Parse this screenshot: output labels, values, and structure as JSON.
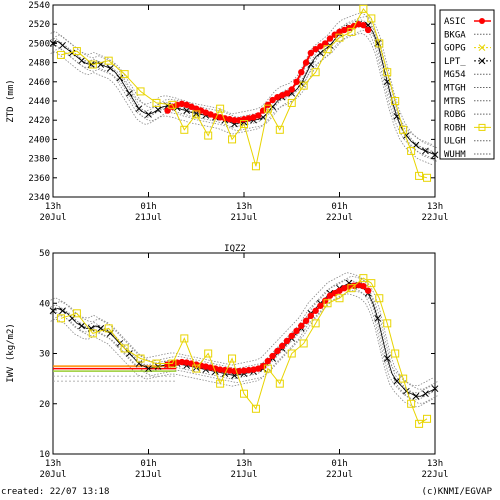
{
  "chart_data": [
    {
      "type": "line",
      "ylabel": "ZTD (mm)",
      "ylim": [
        2340,
        2540
      ],
      "yticks": [
        "2340",
        "2360",
        "2380",
        "2400",
        "2420",
        "2440",
        "2460",
        "2480",
        "2500",
        "2520",
        "2540"
      ],
      "xticks": [
        {
          "hour": "13h",
          "date": "20Jul"
        },
        {
          "hour": "01h",
          "date": "21Jul"
        },
        {
          "hour": "13h",
          "date": "21Jul"
        },
        {
          "hour": "01h",
          "date": "22Jul"
        },
        {
          "hour": "13h",
          "date": "22Jul"
        }
      ],
      "grid": false,
      "legend_position": "right",
      "legend": [
        "ASIC",
        "BKGA",
        "GOPG",
        "LPT_",
        "MG54",
        "MTGH",
        "MTRS",
        "ROBG",
        "ROBH",
        "ULGH",
        "WUHM"
      ],
      "series": [
        {
          "name": "LPT_",
          "marker": "x",
          "color": "#000000",
          "x": [
            0,
            0.6,
            1.2,
            1.8,
            2.4,
            3,
            3.6,
            4.2,
            4.8,
            5.4,
            6,
            6.6,
            7.2,
            7.8,
            8.4,
            9,
            9.6,
            10.2,
            10.8,
            11.4,
            12,
            12.6,
            13.2,
            13.8,
            14.4,
            15,
            15.6,
            16.2,
            16.8,
            17.4,
            18,
            18.6,
            19.2,
            19.8,
            20.4,
            21,
            21.6,
            22.2,
            22.8,
            23.4,
            24,
            24.6,
            25.2,
            25.8,
            26.4,
            27,
            27.6,
            28.2,
            28.8,
            29.4,
            30,
            30.6,
            31.2,
            31.8,
            32.4,
            33,
            33.6,
            34.2,
            34.8,
            35.4,
            36,
            36.6,
            37.2,
            37.8,
            38.4,
            39,
            39.6,
            40.2,
            40.8,
            41.4,
            42,
            42.6,
            43.2,
            43.8,
            44.4,
            45,
            45.6,
            46.2,
            46.8,
            47.4,
            48
          ],
          "y": [
            2500,
            2502,
            2498,
            2494,
            2490,
            2486,
            2482,
            2479,
            2478,
            2480,
            2478,
            2476,
            2474,
            2470,
            2464,
            2456,
            2448,
            2440,
            2432,
            2428,
            2426,
            2428,
            2431,
            2434,
            2435,
            2434,
            2433,
            2431,
            2430,
            2428,
            2427,
            2426,
            2425,
            2424,
            2423,
            2422,
            2420,
            2418,
            2416,
            2417,
            2418,
            2419,
            2420,
            2421,
            2423,
            2428,
            2434,
            2440,
            2444,
            2446,
            2448,
            2452,
            2458,
            2468,
            2478,
            2486,
            2490,
            2494,
            2498,
            2504,
            2510,
            2514,
            2516,
            2518,
            2520,
            2521,
            2519,
            2512,
            2500,
            2480,
            2460,
            2440,
            2424,
            2412,
            2404,
            2398,
            2394,
            2390,
            2388,
            2386,
            2384
          ]
        },
        {
          "name": "ASIC",
          "marker": "dot",
          "color": "#ff0000",
          "x": [
            14.4,
            15,
            15.6,
            16.2,
            16.8,
            17.4,
            18,
            18.6,
            19.2,
            19.8,
            20.4,
            21,
            21.6,
            22.2,
            22.8,
            23.4,
            24,
            24.6,
            25.2,
            25.8,
            26.4,
            27,
            27.6,
            28.2,
            28.8,
            29.4,
            30,
            30.6,
            31.2,
            31.8,
            32.4,
            33,
            33.6,
            34.2,
            34.8,
            35.4,
            36,
            36.6,
            37.2,
            37.8,
            38.4,
            39,
            39.6
          ],
          "y": [
            2430,
            2434,
            2436,
            2437,
            2436,
            2434,
            2432,
            2430,
            2428,
            2426,
            2424,
            2423,
            2422,
            2421,
            2420,
            2420,
            2421,
            2422,
            2423,
            2425,
            2430,
            2436,
            2441,
            2444,
            2446,
            2448,
            2452,
            2460,
            2470,
            2480,
            2490,
            2494,
            2497,
            2500,
            2505,
            2509,
            2512,
            2514,
            2516,
            2518,
            2520,
            2519,
            2514
          ]
        },
        {
          "name": "GOPG",
          "marker": "square",
          "color": "#ffd700",
          "x": [
            1,
            3,
            5,
            7,
            9,
            11,
            13,
            15,
            16.5,
            18,
            19.5,
            21,
            22.5,
            24,
            25.5,
            27,
            28.5,
            30,
            31.5,
            33,
            34.5,
            36,
            37.5,
            39,
            40,
            41,
            42,
            43,
            44,
            45,
            46,
            47
          ],
          "y": [
            2488,
            2492,
            2478,
            2482,
            2468,
            2450,
            2438,
            2436,
            2410,
            2426,
            2404,
            2432,
            2400,
            2416,
            2372,
            2432,
            2410,
            2438,
            2456,
            2470,
            2494,
            2506,
            2512,
            2536,
            2526,
            2500,
            2470,
            2440,
            2410,
            2388,
            2362,
            2360
          ]
        }
      ],
      "other_series_style": "dotted grey"
    },
    {
      "type": "line",
      "title": "IQZ2",
      "ylabel": "IWV (kg/m2)",
      "ylim": [
        10,
        50
      ],
      "yticks": [
        "10",
        "20",
        "30",
        "40",
        "50"
      ],
      "xticks": [
        {
          "hour": "13h",
          "date": "20Jul"
        },
        {
          "hour": "01h",
          "date": "21Jul"
        },
        {
          "hour": "13h",
          "date": "21Jul"
        },
        {
          "hour": "01h",
          "date": "22Jul"
        },
        {
          "hour": "13h",
          "date": "22Jul"
        }
      ],
      "grid": false,
      "series": [
        {
          "name": "LPT_",
          "marker": "x",
          "color": "#000000",
          "x": [
            0,
            0.6,
            1.2,
            1.8,
            2.4,
            3,
            3.6,
            4.2,
            4.8,
            5.4,
            6,
            6.6,
            7.2,
            7.8,
            8.4,
            9,
            9.6,
            10.2,
            10.8,
            11.4,
            12,
            12.6,
            13.2,
            13.8,
            14.4,
            15,
            15.6,
            16.2,
            16.8,
            17.4,
            18,
            18.6,
            19.2,
            19.8,
            20.4,
            21,
            21.6,
            22.2,
            22.8,
            23.4,
            24,
            24.6,
            25.2,
            25.8,
            26.4,
            27,
            27.6,
            28.2,
            28.8,
            29.4,
            30,
            30.6,
            31.2,
            31.8,
            32.4,
            33,
            33.6,
            34.2,
            34.8,
            35.4,
            36,
            36.6,
            37.2,
            37.8,
            38.4,
            39,
            39.6,
            40.2,
            40.8,
            41.4,
            42,
            42.6,
            43.2,
            43.8,
            44.4,
            45,
            45.6,
            46.2,
            46.8,
            47.4,
            48
          ],
          "y": [
            38.5,
            39,
            38.5,
            38,
            37,
            36,
            35.5,
            35,
            35,
            35.5,
            35,
            34.5,
            34,
            33,
            32,
            31,
            30,
            29,
            28,
            27.5,
            27,
            27.2,
            27.4,
            27.6,
            27.8,
            28,
            28,
            27.8,
            27.6,
            27.4,
            27.2,
            27,
            26.8,
            26.6,
            26.4,
            26.2,
            26,
            25.8,
            25.6,
            25.8,
            26,
            26.2,
            26.4,
            26.6,
            27,
            28,
            29,
            30,
            31,
            32,
            33,
            34,
            35,
            36.5,
            38,
            39,
            40,
            41,
            42,
            42.5,
            43,
            43.5,
            44,
            43.8,
            43.5,
            43,
            42,
            40,
            37,
            33,
            29,
            26,
            24.5,
            23.5,
            22.5,
            22,
            21.5,
            21.5,
            22,
            22.5,
            23
          ]
        },
        {
          "name": "ASIC",
          "marker": "dot",
          "color": "#ff0000",
          "x": [
            14.4,
            15,
            15.6,
            16.2,
            16.8,
            17.4,
            18,
            18.6,
            19.2,
            19.8,
            20.4,
            21,
            21.6,
            22.2,
            22.8,
            23.4,
            24,
            24.6,
            25.2,
            25.8,
            26.4,
            27,
            27.6,
            28.2,
            28.8,
            29.4,
            30,
            30.6,
            31.2,
            31.8,
            32.4,
            33,
            33.6,
            34.2,
            34.8,
            35.4,
            36,
            36.6,
            37.2,
            37.8,
            38.4,
            39,
            39.6
          ],
          "y": [
            27.8,
            28,
            28.2,
            28.3,
            28.2,
            28,
            27.8,
            27.6,
            27.4,
            27.2,
            27,
            26.8,
            26.7,
            26.6,
            26.5,
            26.5,
            26.6,
            26.7,
            26.8,
            27,
            27.5,
            28.5,
            29.5,
            30.5,
            31.5,
            32.5,
            33.5,
            34.5,
            35.5,
            36.5,
            37.5,
            38.5,
            39.5,
            40.5,
            41.5,
            42,
            42.5,
            43,
            43.3,
            43.5,
            43.6,
            43.4,
            42.5
          ]
        },
        {
          "name": "GOPG",
          "marker": "square",
          "color": "#ffd700",
          "x": [
            1,
            3,
            5,
            7,
            9,
            11,
            13,
            15,
            16.5,
            18,
            19.5,
            21,
            22.5,
            24,
            25.5,
            27,
            28.5,
            30,
            31.5,
            33,
            34.5,
            36,
            37.5,
            39,
            40,
            41,
            42,
            43,
            44,
            45,
            46,
            47
          ],
          "y": [
            37,
            38,
            34,
            35,
            31,
            29,
            28,
            28,
            33,
            27,
            30,
            24,
            29,
            22,
            19,
            27,
            24,
            30,
            32,
            36,
            40,
            41,
            43,
            45,
            44,
            41,
            36,
            30,
            25,
            20,
            16,
            17
          ]
        }
      ],
      "other_series_style": "dotted grey"
    }
  ],
  "footer": {
    "created": "created: 22/07 13:18",
    "credit": "(c)KNMI/EGVAP"
  }
}
